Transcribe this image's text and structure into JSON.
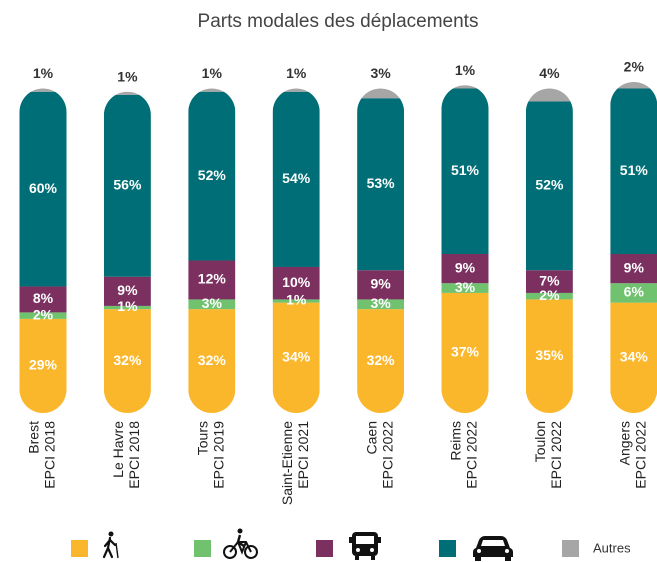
{
  "chart_data": {
    "type": "stacked_bar",
    "title": "Parts modales des déplacements",
    "categories": [
      [
        "Brest",
        "EPCI 2018"
      ],
      [
        "Le Havre",
        "EPCI 2018"
      ],
      [
        "Tours",
        "EPCI 2019"
      ],
      [
        "Saint-Etienne",
        "EPCI 2021"
      ],
      [
        "Caen",
        "EPCI 2022"
      ],
      [
        "Reims",
        "EPCI 2022"
      ],
      [
        "Toulon",
        "EPCI 2022"
      ],
      [
        "Angers",
        "EPCI 2022"
      ]
    ],
    "series": [
      {
        "color": "#fbb72c",
        "values": [
          29,
          32,
          32,
          34,
          32,
          37,
          35,
          34
        ],
        "value_labels": [
          "29%",
          "32%",
          "32%",
          "34%",
          "32%",
          "37%",
          "35%",
          "34%"
        ]
      },
      {
        "color": "#70c26f",
        "values": [
          2,
          1,
          3,
          1,
          3,
          3,
          2,
          6
        ],
        "value_labels": [
          "2%",
          "1%",
          "3%",
          "1%",
          "3%",
          "3%",
          "2%",
          "6%"
        ]
      },
      {
        "color": "#7b3060",
        "values": [
          8,
          9,
          12,
          10,
          9,
          9,
          7,
          9
        ],
        "value_labels": [
          "8%",
          "9%",
          "12%",
          "10%",
          "9%",
          "9%",
          "7%",
          "9%"
        ]
      },
      {
        "color": "#006e76",
        "values": [
          60,
          56,
          52,
          54,
          53,
          51,
          52,
          51
        ],
        "value_labels": [
          "60%",
          "56%",
          "52%",
          "54%",
          "53%",
          "51%",
          "52%",
          "51%"
        ]
      },
      {
        "name": "Autres",
        "color": "#a6a6a6",
        "values": [
          1,
          1,
          1,
          1,
          3,
          1,
          4,
          2
        ],
        "value_labels": [
          "1%",
          "1%",
          "1%",
          "1%",
          "3%",
          "1%",
          "4%",
          "2%"
        ]
      }
    ]
  }
}
